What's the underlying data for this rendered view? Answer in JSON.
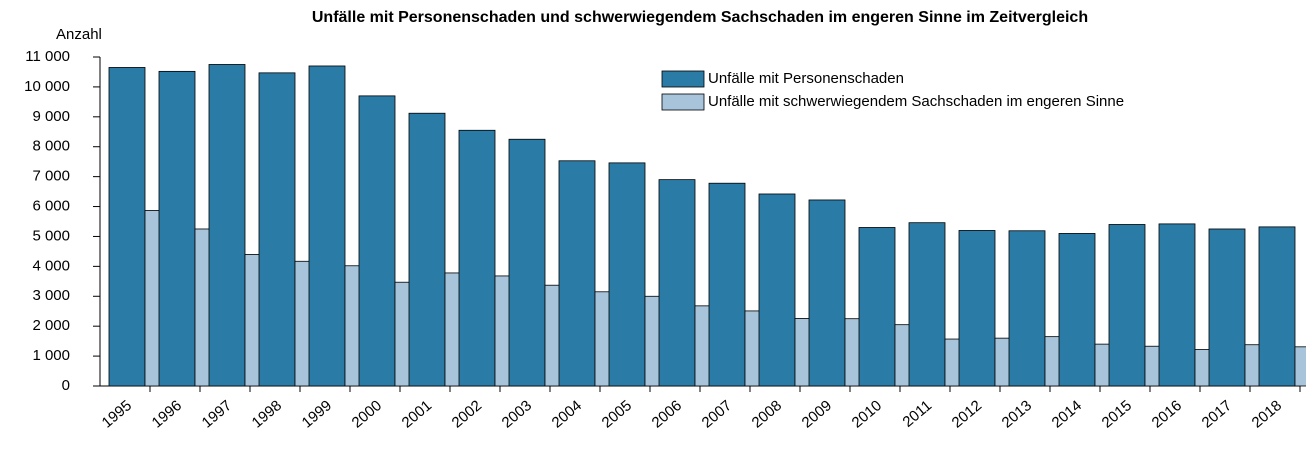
{
  "chart_data": {
    "type": "bar",
    "title": "Unfälle mit Personenschaden und schwerwiegendem Sachschaden im engeren Sinne im Zeitvergleich",
    "y_label": "Anzahl",
    "categories": [
      "1995",
      "1996",
      "1997",
      "1998",
      "1999",
      "2000",
      "2001",
      "2002",
      "2003",
      "2004",
      "2005",
      "2006",
      "2007",
      "2008",
      "2009",
      "2010",
      "2011",
      "2012",
      "2013",
      "2014",
      "2015",
      "2016",
      "2017",
      "2018"
    ],
    "series": [
      {
        "name": "Unfälle mit Personenschaden",
        "color": "#2b7ba7",
        "values": [
          10650,
          10520,
          10750,
          10470,
          10700,
          9700,
          9120,
          8550,
          8250,
          7530,
          7460,
          6900,
          6780,
          6420,
          6220,
          5300,
          5460,
          5200,
          5190,
          5100,
          5400,
          5420,
          5250,
          5320
        ]
      },
      {
        "name": "Unfälle mit schwerwiegendem Sachschaden im engeren Sinne",
        "color": "#a7c4da",
        "values": [
          5870,
          5250,
          4400,
          4170,
          4020,
          3470,
          3780,
          3680,
          3370,
          3150,
          3000,
          2680,
          2510,
          2260,
          2250,
          2050,
          1570,
          1600,
          1650,
          1400,
          1330,
          1220,
          1380,
          1310
        ]
      }
    ],
    "ylim": [
      0,
      11000
    ],
    "yticks": [
      0,
      {
        "value": 1000,
        "label": "1 000"
      },
      {
        "value": 2000,
        "label": "2 000"
      },
      {
        "value": 3000,
        "label": "3 000"
      },
      {
        "value": 4000,
        "label": "4 000"
      },
      {
        "value": 5000,
        "label": "5 000"
      },
      {
        "value": 6000,
        "label": "6 000"
      },
      {
        "value": 7000,
        "label": "7 000"
      },
      {
        "value": 8000,
        "label": "8 000"
      },
      {
        "value": 9000,
        "label": "9 000"
      },
      {
        "value": 10000,
        "label": "10 000"
      },
      {
        "value": 11000,
        "label": "11 000"
      }
    ],
    "legend": "top-right"
  }
}
